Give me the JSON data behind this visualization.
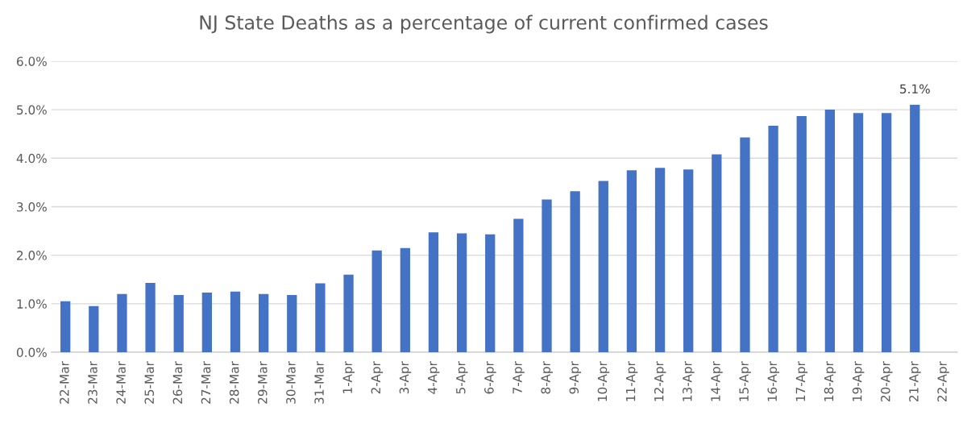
{
  "chart_data": {
    "type": "bar",
    "title": "NJ State Deaths as a percentage of current confirmed cases",
    "categories": [
      "22-Mar",
      "23-Mar",
      "24-Mar",
      "25-Mar",
      "26-Mar",
      "27-Mar",
      "28-Mar",
      "29-Mar",
      "30-Mar",
      "31-Mar",
      "1-Apr",
      "2-Apr",
      "3-Apr",
      "4-Apr",
      "5-Apr",
      "6-Apr",
      "7-Apr",
      "8-Apr",
      "9-Apr",
      "10-Apr",
      "11-Apr",
      "12-Apr",
      "13-Apr",
      "14-Apr",
      "15-Apr",
      "16-Apr",
      "17-Apr",
      "18-Apr",
      "19-Apr",
      "20-Apr",
      "21-Apr",
      "22-Apr"
    ],
    "values": [
      1.05,
      0.95,
      1.2,
      1.43,
      1.18,
      1.23,
      1.25,
      1.2,
      1.18,
      1.42,
      1.6,
      2.1,
      2.15,
      2.47,
      2.45,
      2.43,
      2.75,
      3.15,
      3.32,
      3.53,
      3.75,
      3.8,
      3.77,
      4.08,
      4.43,
      4.67,
      4.87,
      5.0,
      4.93,
      4.93,
      5.1,
      null
    ],
    "value_labels": [
      null,
      null,
      null,
      null,
      null,
      null,
      null,
      null,
      null,
      null,
      null,
      null,
      null,
      null,
      null,
      null,
      null,
      null,
      null,
      null,
      null,
      null,
      null,
      null,
      null,
      null,
      null,
      null,
      null,
      null,
      "5.1%",
      null
    ],
    "color": "#4472c4",
    "ylim": [
      0,
      6
    ],
    "yticks": [
      {
        "value": 0,
        "label": "0.0%"
      },
      {
        "value": 1,
        "label": "1.0%"
      },
      {
        "value": 2,
        "label": "2.0%"
      },
      {
        "value": 3,
        "label": "3.0%"
      },
      {
        "value": 4,
        "label": "4.0%"
      },
      {
        "value": 5,
        "label": "5.0%"
      },
      {
        "value": 6,
        "label": "6.0%"
      }
    ],
    "grid": "y",
    "legend": false
  }
}
